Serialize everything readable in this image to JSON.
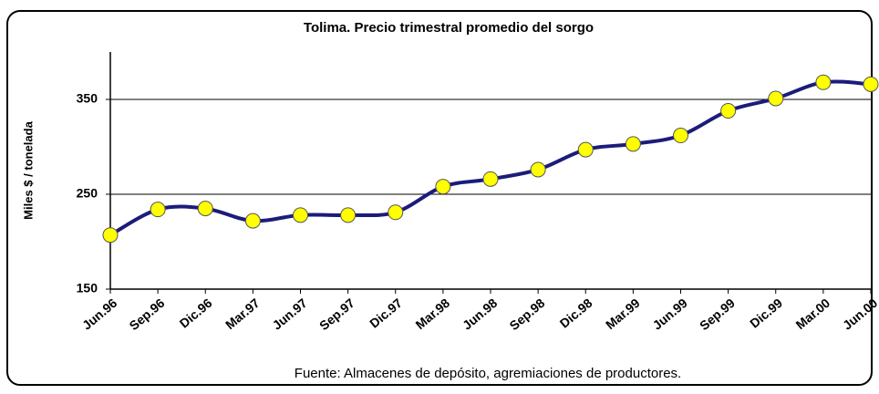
{
  "chart_data": {
    "type": "line",
    "title": "Tolima. Precio trimestral promedio del sorgo",
    "y_label": "Miles $ / tonelada",
    "source": "Fuente: Almacenes de depósito, agremiaciones de productores.",
    "categories": [
      "Jun.96",
      "Sep.96",
      "Dic.96",
      "Mar.97",
      "Jun.97",
      "Sep.97",
      "Dic.97",
      "Mar.98",
      "Jun.98",
      "Sep.98",
      "Dic.98",
      "Mar.99",
      "Jun.99",
      "Sep.99",
      "Dic.99",
      "Mar.00",
      "Jun.00"
    ],
    "values": [
      207,
      234,
      235,
      222,
      228,
      228,
      231,
      258,
      266,
      276,
      297,
      303,
      312,
      338,
      351,
      368,
      366
    ],
    "color": "#1c1c7a",
    "marker_color": "#ffff00",
    "ylim": [
      150,
      400
    ],
    "yticks": [
      150,
      250,
      350
    ],
    "grid": true
  }
}
